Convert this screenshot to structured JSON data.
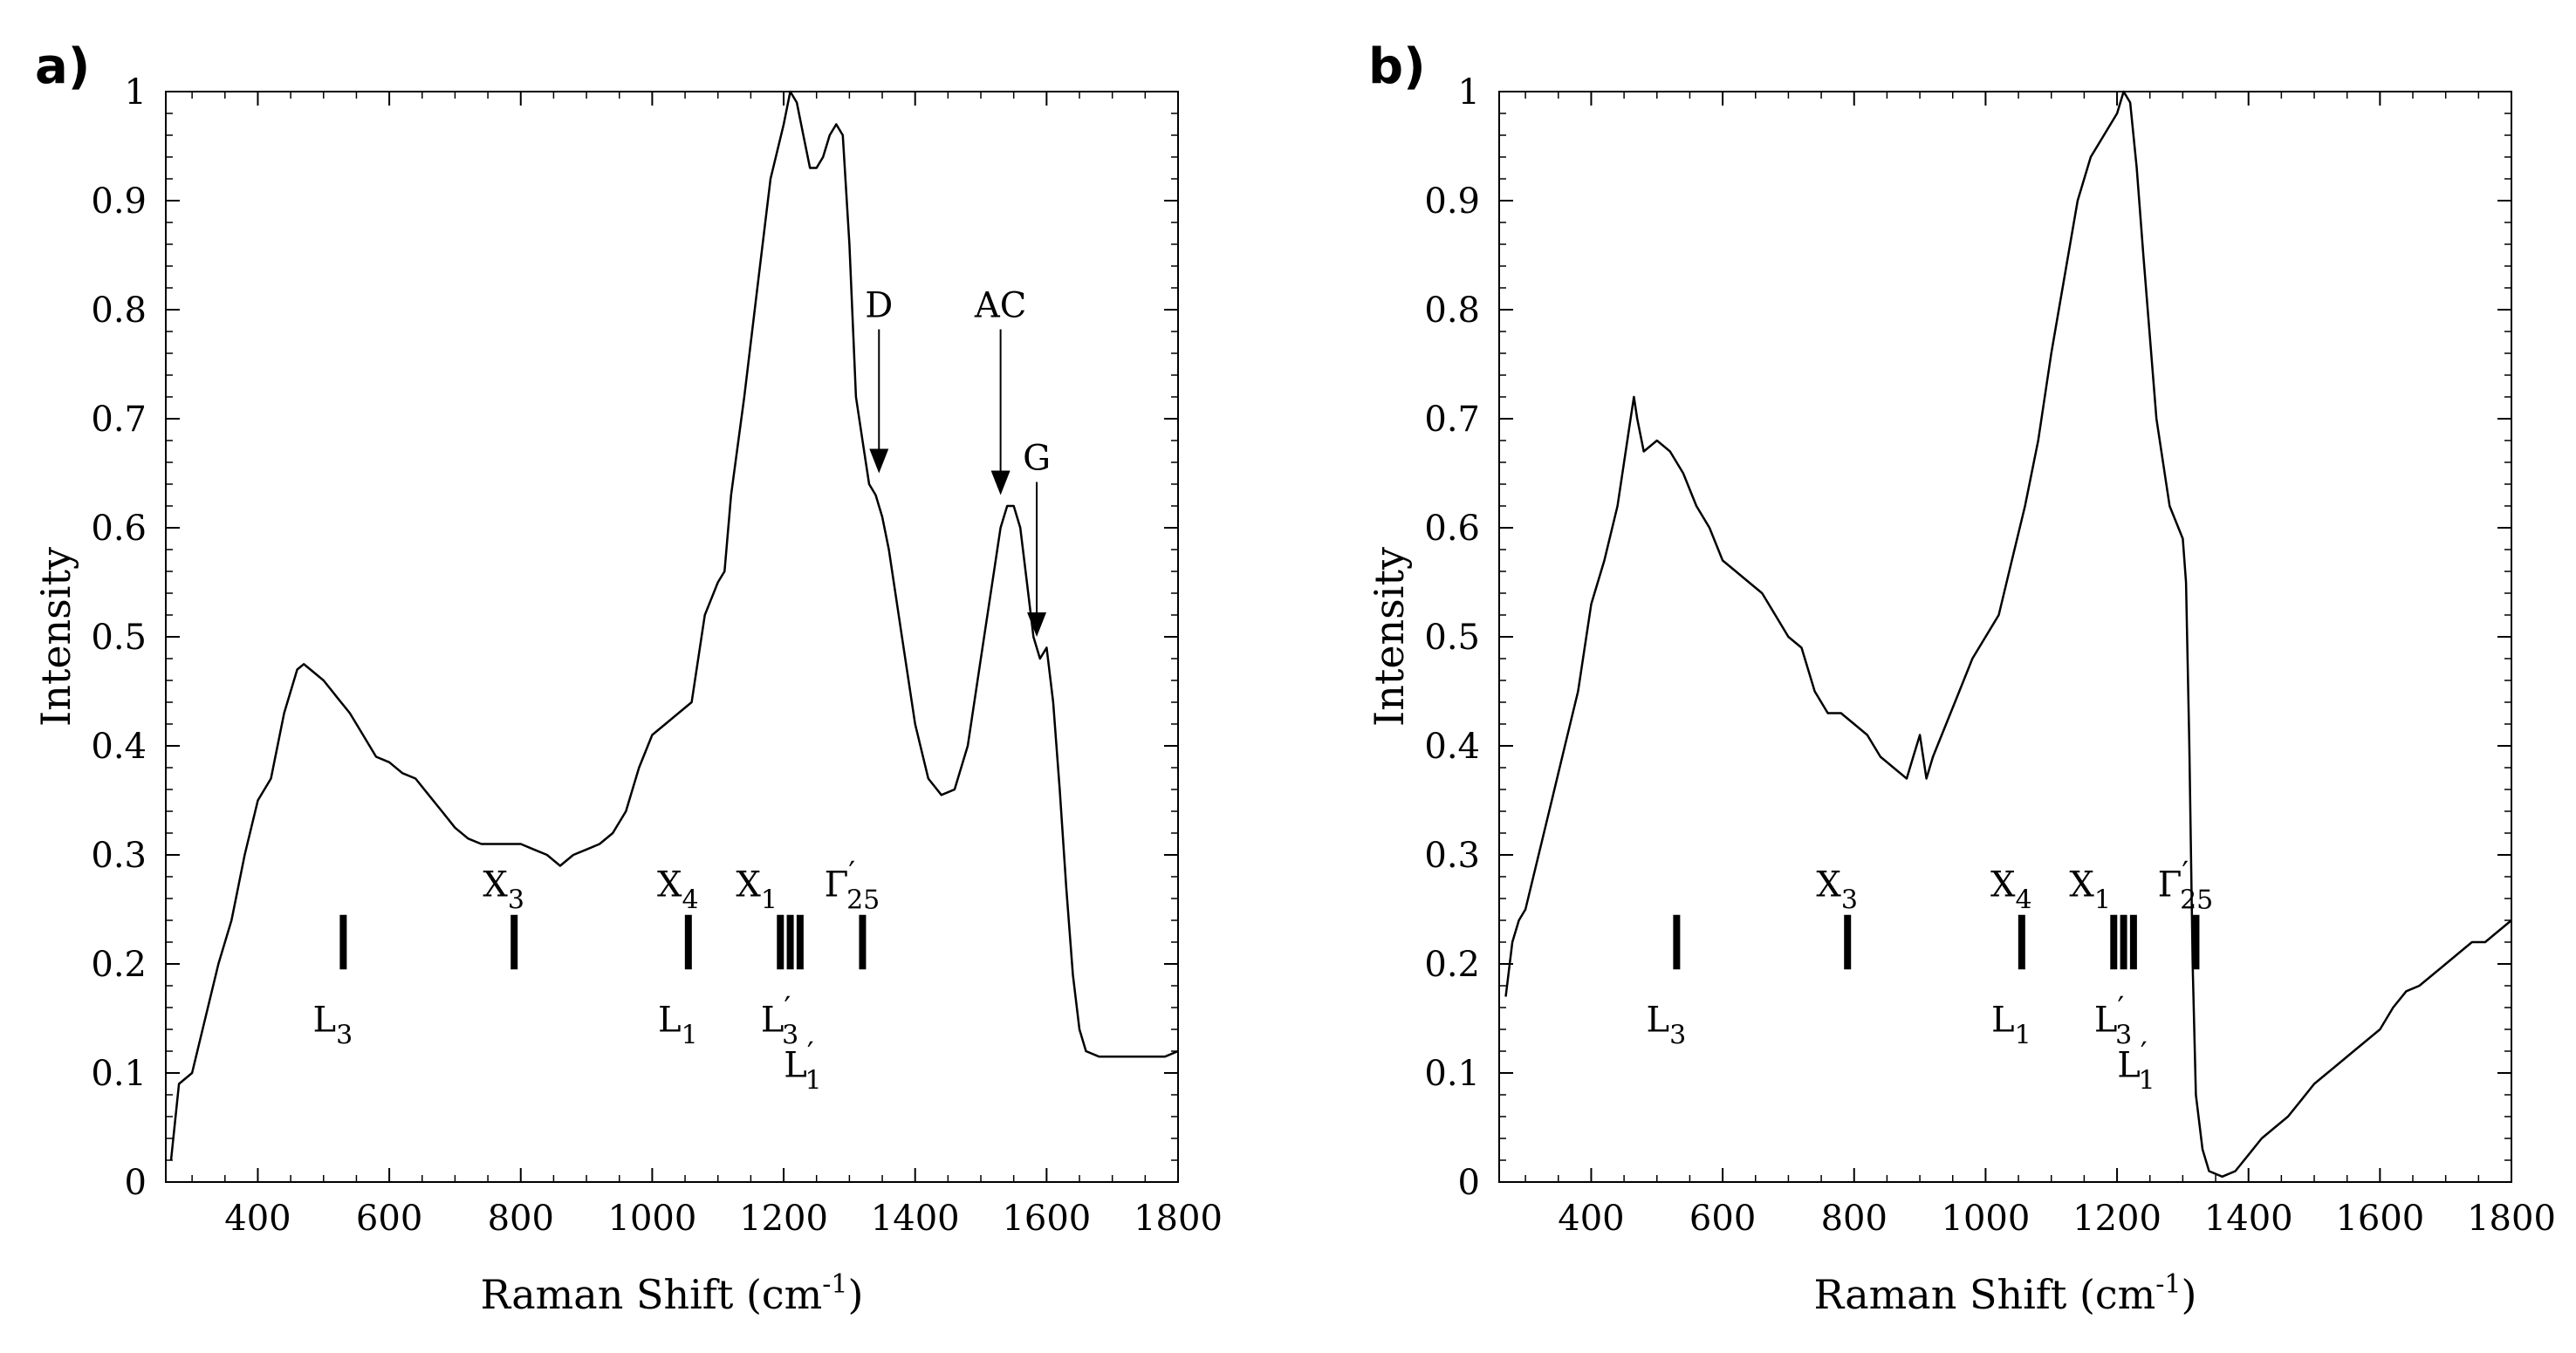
{
  "chart_data": [
    {
      "panel": "a)",
      "type": "line",
      "xlabel": "Raman Shift (cm",
      "xlabel_sup": "-1",
      "xlabel_end": ")",
      "ylabel": "Intensity",
      "xlim": [
        260,
        1800
      ],
      "ylim": [
        0,
        1
      ],
      "xticks": [
        400,
        600,
        800,
        1000,
        1200,
        1400,
        1600,
        1800
      ],
      "yticks": [
        0,
        0.1,
        0.2,
        0.3,
        0.4,
        0.5,
        0.6,
        0.7,
        0.8,
        0.9,
        1
      ],
      "series": [
        {
          "name": "spectrum",
          "x": [
            268,
            280,
            300,
            320,
            340,
            360,
            380,
            400,
            420,
            440,
            460,
            470,
            480,
            500,
            520,
            540,
            560,
            580,
            600,
            620,
            640,
            660,
            680,
            700,
            720,
            740,
            760,
            780,
            800,
            820,
            840,
            860,
            880,
            900,
            920,
            940,
            960,
            980,
            1000,
            1020,
            1040,
            1060,
            1080,
            1090,
            1100,
            1110,
            1120,
            1140,
            1160,
            1180,
            1200,
            1210,
            1220,
            1230,
            1240,
            1250,
            1260,
            1270,
            1280,
            1290,
            1300,
            1310,
            1320,
            1330,
            1340,
            1350,
            1360,
            1380,
            1400,
            1420,
            1440,
            1460,
            1480,
            1500,
            1520,
            1530,
            1540,
            1550,
            1560,
            1570,
            1580,
            1590,
            1600,
            1610,
            1620,
            1630,
            1640,
            1650,
            1660,
            1680,
            1700,
            1720,
            1740,
            1760,
            1780,
            1800
          ],
          "y": [
            0.02,
            0.09,
            0.1,
            0.15,
            0.2,
            0.24,
            0.3,
            0.35,
            0.37,
            0.43,
            0.47,
            0.475,
            0.47,
            0.46,
            0.445,
            0.43,
            0.41,
            0.39,
            0.385,
            0.375,
            0.37,
            0.355,
            0.34,
            0.325,
            0.315,
            0.31,
            0.31,
            0.31,
            0.31,
            0.305,
            0.3,
            0.29,
            0.3,
            0.305,
            0.31,
            0.32,
            0.34,
            0.38,
            0.41,
            0.42,
            0.43,
            0.44,
            0.52,
            0.535,
            0.55,
            0.56,
            0.63,
            0.72,
            0.82,
            0.92,
            0.97,
            1.0,
            0.99,
            0.96,
            0.93,
            0.93,
            0.94,
            0.96,
            0.97,
            0.96,
            0.86,
            0.72,
            0.68,
            0.64,
            0.63,
            0.61,
            0.58,
            0.5,
            0.42,
            0.37,
            0.355,
            0.36,
            0.4,
            0.48,
            0.56,
            0.6,
            0.62,
            0.62,
            0.6,
            0.55,
            0.5,
            0.48,
            0.49,
            0.44,
            0.36,
            0.27,
            0.19,
            0.14,
            0.12,
            0.115,
            0.115,
            0.115,
            0.115,
            0.115,
            0.115,
            0.12
          ]
        }
      ],
      "markers": [
        {
          "x": 530,
          "label": "L",
          "sub": "3",
          "prime": false,
          "pos": "below",
          "dy": 0
        },
        {
          "x": 790,
          "label": "X",
          "sub": "3",
          "prime": false,
          "pos": "above",
          "dy": 0
        },
        {
          "x": 1055,
          "label": "X",
          "sub": "4",
          "prime": false,
          "pos": "above",
          "dy": 0
        },
        {
          "x": 1055,
          "label": "L",
          "sub": "1",
          "prime": false,
          "pos": "below",
          "dy": 0
        },
        {
          "x": 1175,
          "label": "X",
          "sub": "1",
          "prime": false,
          "pos": "above",
          "dy": 0
        },
        {
          "x": 1210,
          "label": "L",
          "sub": "3",
          "prime": true,
          "pos": "below",
          "dy": 0
        },
        {
          "x": 1245,
          "label": "L",
          "sub": "1",
          "prime": true,
          "pos": "below",
          "dy": 1
        },
        {
          "x": 1320,
          "label": "Γ",
          "sub": "25",
          "prime": true,
          "pos": "above",
          "dy": 0
        }
      ],
      "marker_lines": [
        1195,
        1210,
        1225,
        1320,
        530,
        790,
        1055
      ],
      "arrows": [
        {
          "label": "D",
          "x": 1345,
          "y_top": 0.79,
          "y_tip": 0.65
        },
        {
          "label": "AC",
          "x": 1530,
          "y_top": 0.79,
          "y_tip": 0.63
        },
        {
          "label": "G",
          "x": 1585,
          "y_top": 0.65,
          "y_tip": 0.5
        }
      ]
    },
    {
      "panel": "b)",
      "type": "line",
      "xlabel": "Raman Shift (cm",
      "xlabel_sup": "-1",
      "xlabel_end": ")",
      "ylabel": "Intensity",
      "xlim": [
        260,
        1800
      ],
      "ylim": [
        0,
        1
      ],
      "xticks": [
        400,
        600,
        800,
        1000,
        1200,
        1400,
        1600,
        1800
      ],
      "yticks": [
        0,
        0.1,
        0.2,
        0.3,
        0.4,
        0.5,
        0.6,
        0.7,
        0.8,
        0.9,
        1
      ],
      "series": [
        {
          "name": "spectrum",
          "x": [
            270,
            280,
            290,
            300,
            320,
            340,
            360,
            380,
            400,
            420,
            440,
            450,
            460,
            465,
            470,
            480,
            500,
            520,
            540,
            560,
            580,
            600,
            620,
            640,
            660,
            680,
            700,
            720,
            740,
            760,
            780,
            800,
            820,
            840,
            860,
            880,
            890,
            900,
            910,
            920,
            940,
            960,
            980,
            1000,
            1020,
            1040,
            1060,
            1080,
            1100,
            1120,
            1140,
            1160,
            1180,
            1200,
            1210,
            1220,
            1230,
            1240,
            1260,
            1280,
            1300,
            1305,
            1310,
            1315,
            1320,
            1330,
            1340,
            1360,
            1380,
            1400,
            1420,
            1440,
            1460,
            1480,
            1500,
            1520,
            1540,
            1560,
            1580,
            1600,
            1620,
            1640,
            1660,
            1680,
            1700,
            1720,
            1740,
            1760,
            1780,
            1800
          ],
          "y": [
            0.17,
            0.22,
            0.24,
            0.25,
            0.3,
            0.35,
            0.4,
            0.45,
            0.53,
            0.57,
            0.62,
            0.66,
            0.7,
            0.72,
            0.7,
            0.67,
            0.68,
            0.67,
            0.65,
            0.62,
            0.6,
            0.57,
            0.56,
            0.55,
            0.54,
            0.52,
            0.5,
            0.49,
            0.45,
            0.43,
            0.43,
            0.42,
            0.41,
            0.39,
            0.38,
            0.37,
            0.39,
            0.41,
            0.37,
            0.39,
            0.42,
            0.45,
            0.48,
            0.5,
            0.52,
            0.57,
            0.62,
            0.68,
            0.76,
            0.83,
            0.9,
            0.94,
            0.96,
            0.98,
            1.0,
            0.99,
            0.93,
            0.85,
            0.7,
            0.62,
            0.59,
            0.55,
            0.4,
            0.2,
            0.08,
            0.03,
            0.01,
            0.005,
            0.01,
            0.025,
            0.04,
            0.05,
            0.06,
            0.075,
            0.09,
            0.1,
            0.11,
            0.12,
            0.13,
            0.14,
            0.16,
            0.175,
            0.18,
            0.19,
            0.2,
            0.21,
            0.22,
            0.22,
            0.23,
            0.24
          ]
        }
      ],
      "markers": [
        {
          "x": 530,
          "label": "L",
          "sub": "3",
          "prime": false,
          "pos": "below",
          "dy": 0
        },
        {
          "x": 790,
          "label": "X",
          "sub": "3",
          "prime": false,
          "pos": "above",
          "dy": 0
        },
        {
          "x": 1055,
          "label": "X",
          "sub": "4",
          "prime": false,
          "pos": "above",
          "dy": 0
        },
        {
          "x": 1055,
          "label": "L",
          "sub": "1",
          "prime": false,
          "pos": "below",
          "dy": 0
        },
        {
          "x": 1175,
          "label": "X",
          "sub": "1",
          "prime": false,
          "pos": "above",
          "dy": 0
        },
        {
          "x": 1210,
          "label": "L",
          "sub": "3",
          "prime": true,
          "pos": "below",
          "dy": 0
        },
        {
          "x": 1245,
          "label": "L",
          "sub": "1",
          "prime": true,
          "pos": "below",
          "dy": 1
        },
        {
          "x": 1320,
          "label": "Γ",
          "sub": "25",
          "prime": true,
          "pos": "above",
          "dy": 0
        }
      ],
      "marker_lines": [
        1195,
        1210,
        1225,
        1320,
        530,
        790,
        1055
      ],
      "arrows": []
    }
  ]
}
